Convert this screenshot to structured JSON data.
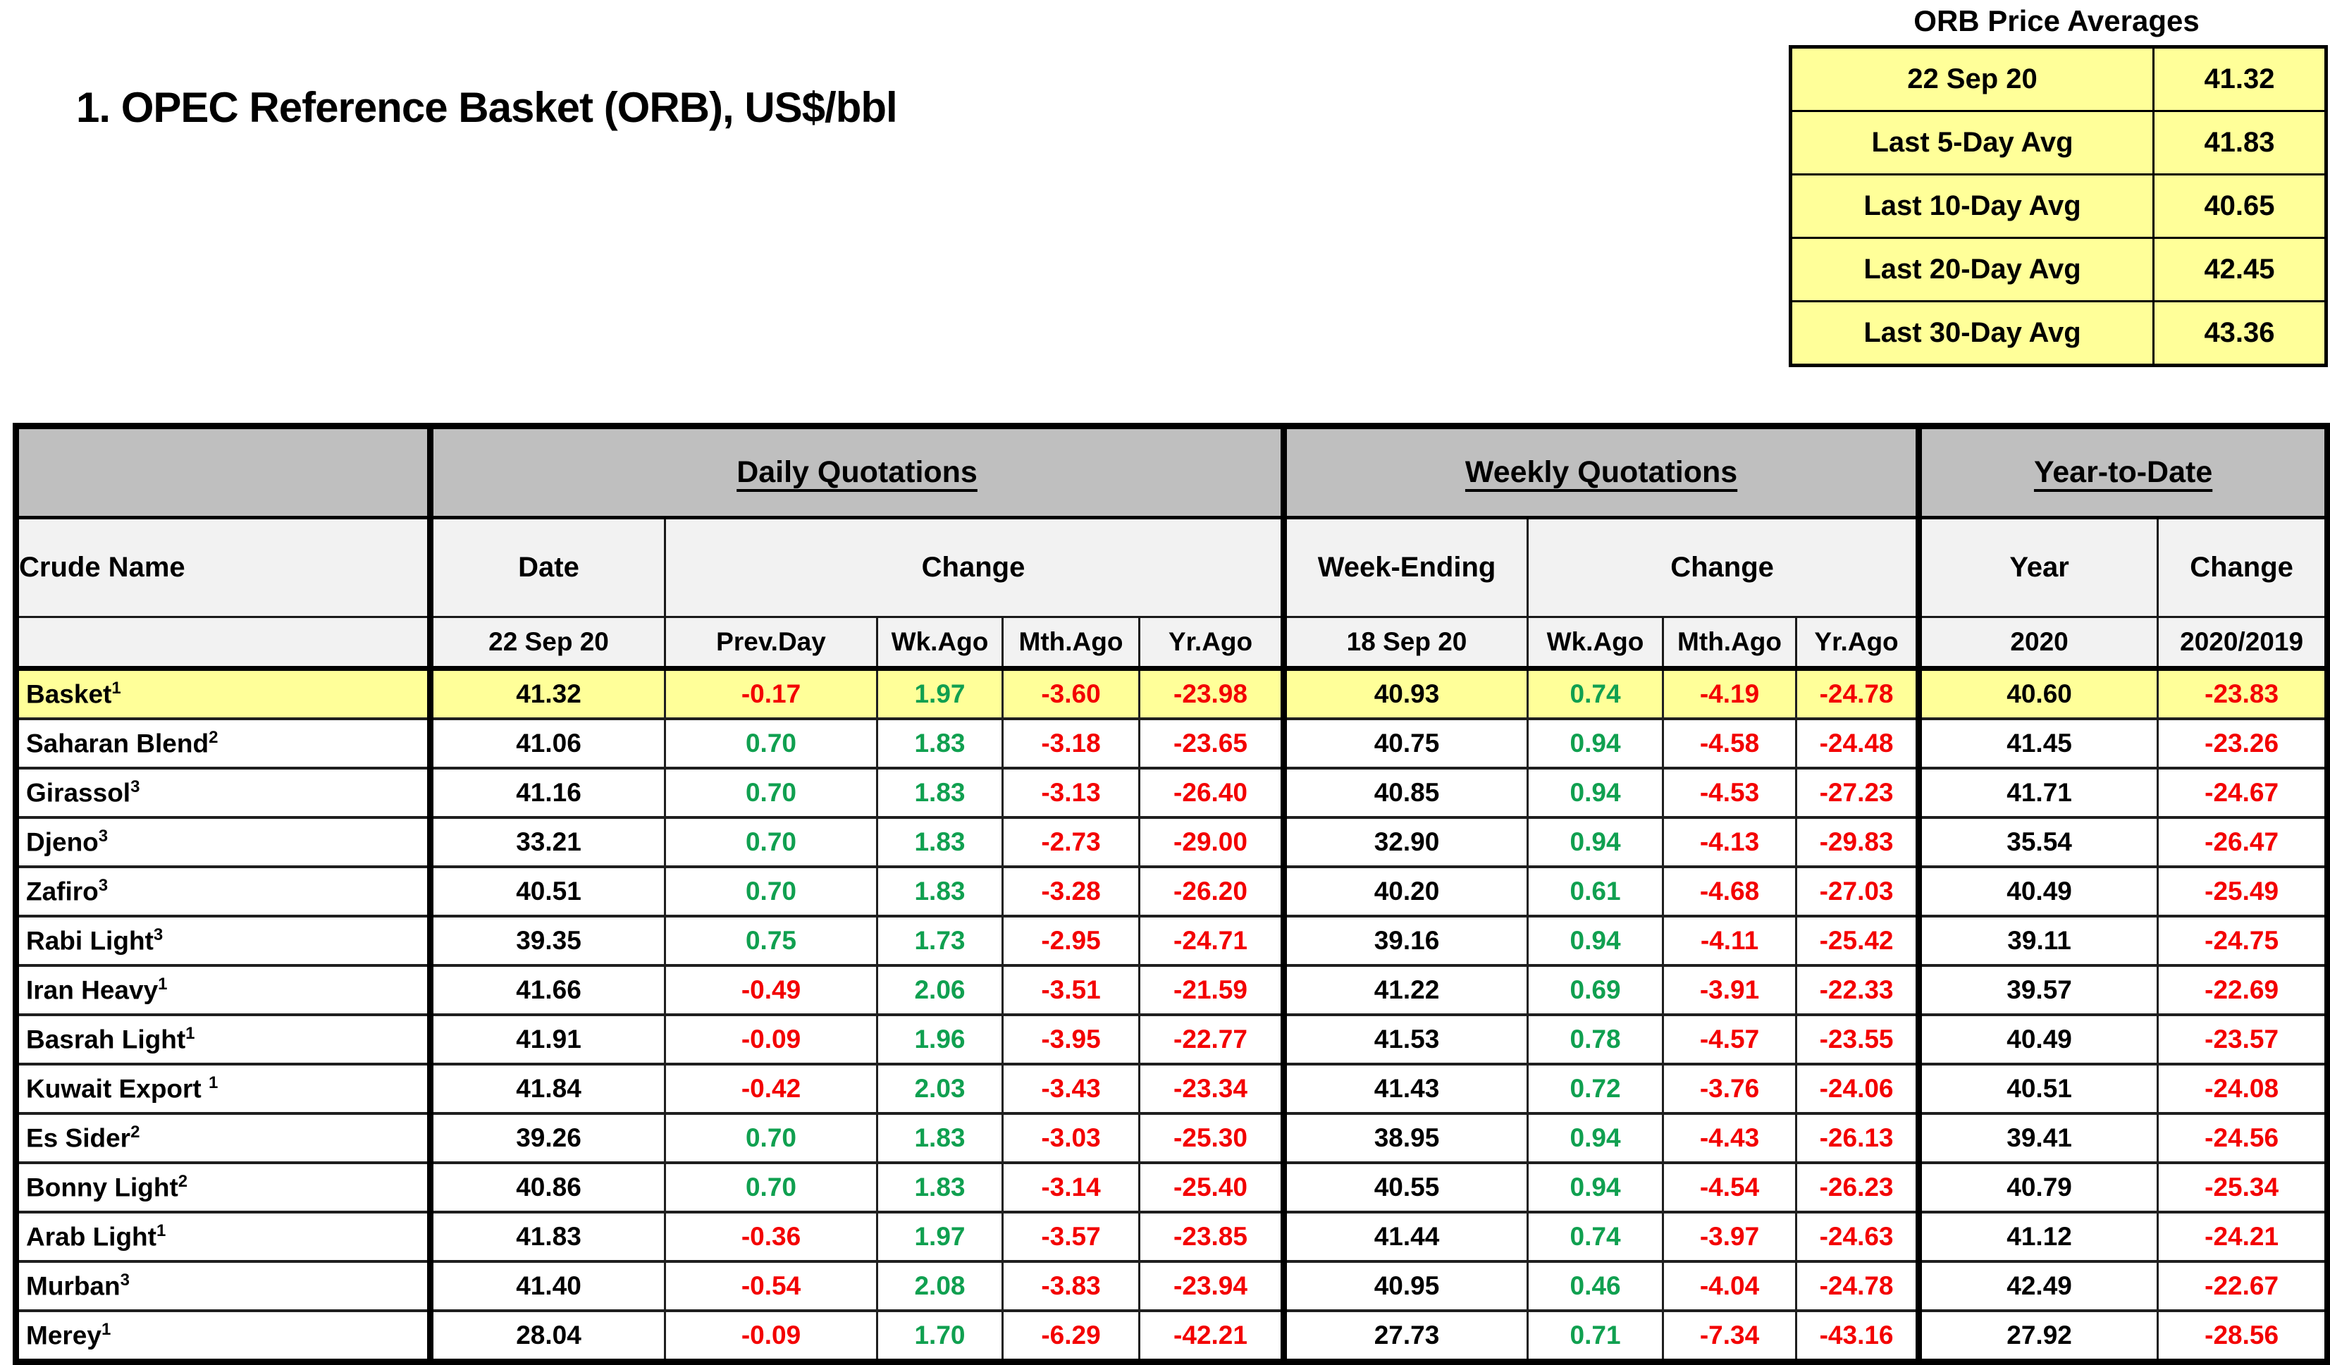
{
  "page_title": "1. OPEC Reference Basket (ORB), US$/bbl",
  "averages": {
    "title": "ORB Price Averages",
    "rows": [
      {
        "label": "22 Sep 20",
        "value": "41.32"
      },
      {
        "label": "Last 5-Day Avg",
        "value": "41.83"
      },
      {
        "label": "Last 10-Day Avg",
        "value": "40.65"
      },
      {
        "label": "Last 20-Day Avg",
        "value": "42.45"
      },
      {
        "label": "Last 30-Day Avg",
        "value": "43.36"
      }
    ]
  },
  "table": {
    "group_headers": {
      "daily": "Daily Quotations",
      "weekly": "Weekly Quotations",
      "ytd": "Year-to-Date"
    },
    "col_headers": {
      "crude_name": "Crude Name",
      "date": "Date",
      "daily_change": "Change",
      "week_ending": "Week-Ending",
      "weekly_change": "Change",
      "year": "Year",
      "ytd_change": "Change"
    },
    "sub_headers": {
      "daily_date": "22 Sep 20",
      "prev_day": "Prev.Day",
      "d_wk_ago": "Wk.Ago",
      "d_mth_ago": "Mth.Ago",
      "d_yr_ago": "Yr.Ago",
      "week_date": "18 Sep 20",
      "w_wk_ago": "Wk.Ago",
      "w_mth_ago": "Mth.Ago",
      "w_yr_ago": "Yr.Ago",
      "ytd_year": "2020",
      "ytd_ratio": "2020/2019"
    },
    "level_value_indexes": [
      0,
      5,
      9
    ],
    "rows": [
      {
        "name": "Basket",
        "sup": "1",
        "highlight": true,
        "values": [
          "41.32",
          "-0.17",
          "1.97",
          "-3.60",
          "-23.98",
          "40.93",
          "0.74",
          "-4.19",
          "-24.78",
          "40.60",
          "-23.83"
        ]
      },
      {
        "name": "Saharan Blend",
        "sup": "2",
        "values": [
          "41.06",
          "0.70",
          "1.83",
          "-3.18",
          "-23.65",
          "40.75",
          "0.94",
          "-4.58",
          "-24.48",
          "41.45",
          "-23.26"
        ]
      },
      {
        "name": "Girassol",
        "sup": "3",
        "values": [
          "41.16",
          "0.70",
          "1.83",
          "-3.13",
          "-26.40",
          "40.85",
          "0.94",
          "-4.53",
          "-27.23",
          "41.71",
          "-24.67"
        ]
      },
      {
        "name": "Djeno",
        "sup": "3",
        "values": [
          "33.21",
          "0.70",
          "1.83",
          "-2.73",
          "-29.00",
          "32.90",
          "0.94",
          "-4.13",
          "-29.83",
          "35.54",
          "-26.47"
        ]
      },
      {
        "name": "Zafiro",
        "sup": "3",
        "values": [
          "40.51",
          "0.70",
          "1.83",
          "-3.28",
          "-26.20",
          "40.20",
          "0.61",
          "-4.68",
          "-27.03",
          "40.49",
          "-25.49"
        ]
      },
      {
        "name": "Rabi Light",
        "sup": "3",
        "values": [
          "39.35",
          "0.75",
          "1.73",
          "-2.95",
          "-24.71",
          "39.16",
          "0.94",
          "-4.11",
          "-25.42",
          "39.11",
          "-24.75"
        ]
      },
      {
        "name": "Iran Heavy",
        "sup": "1",
        "values": [
          "41.66",
          "-0.49",
          "2.06",
          "-3.51",
          "-21.59",
          "41.22",
          "0.69",
          "-3.91",
          "-22.33",
          "39.57",
          "-22.69"
        ]
      },
      {
        "name": "Basrah Light",
        "sup": "1",
        "values": [
          "41.91",
          "-0.09",
          "1.96",
          "-3.95",
          "-22.77",
          "41.53",
          "0.78",
          "-4.57",
          "-23.55",
          "40.49",
          "-23.57"
        ]
      },
      {
        "name": "Kuwait Export ",
        "sup": "1",
        "values": [
          "41.84",
          "-0.42",
          "2.03",
          "-3.43",
          "-23.34",
          "41.43",
          "0.72",
          "-3.76",
          "-24.06",
          "40.51",
          "-24.08"
        ]
      },
      {
        "name": "Es Sider",
        "sup": "2",
        "values": [
          "39.26",
          "0.70",
          "1.83",
          "-3.03",
          "-25.30",
          "38.95",
          "0.94",
          "-4.43",
          "-26.13",
          "39.41",
          "-24.56"
        ]
      },
      {
        "name": "Bonny Light",
        "sup": "2",
        "values": [
          "40.86",
          "0.70",
          "1.83",
          "-3.14",
          "-25.40",
          "40.55",
          "0.94",
          "-4.54",
          "-26.23",
          "40.79",
          "-25.34"
        ]
      },
      {
        "name": "Arab Light",
        "sup": "1",
        "values": [
          "41.83",
          "-0.36",
          "1.97",
          "-3.57",
          "-23.85",
          "41.44",
          "0.74",
          "-3.97",
          "-24.63",
          "41.12",
          "-24.21"
        ]
      },
      {
        "name": "Murban",
        "sup": "3",
        "values": [
          "41.40",
          "-0.54",
          "2.08",
          "-3.83",
          "-23.94",
          "40.95",
          "0.46",
          "-4.04",
          "-24.78",
          "42.49",
          "-22.67"
        ]
      },
      {
        "name": "Merey",
        "sup": "1",
        "values": [
          "28.04",
          "-0.09",
          "1.70",
          "-6.29",
          "-42.21",
          "27.73",
          "0.71",
          "-7.34",
          "-43.16",
          "27.92",
          "-28.56"
        ]
      }
    ]
  },
  "colors": {
    "highlight_yellow": "#ffff99",
    "header_gray": "#bfbfbf",
    "subheader_gray": "#f2f2f2",
    "positive_green": "#10a050",
    "negative_red": "#f30000"
  }
}
